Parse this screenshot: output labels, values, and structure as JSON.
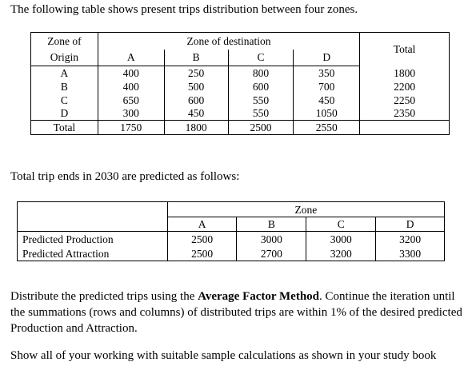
{
  "intro_text": "The following table shows present trips distribution between four zones.",
  "table1": {
    "origin_header_line1": "Zone of",
    "origin_header_line2": "Origin",
    "destination_header": "Zone of destination",
    "total_header": "Total",
    "columns": [
      "A",
      "B",
      "C",
      "D"
    ],
    "rows": [
      {
        "origin": "A",
        "values": [
          "400",
          "250",
          "800",
          "350"
        ],
        "total": "1800"
      },
      {
        "origin": "B",
        "values": [
          "400",
          "500",
          "600",
          "700"
        ],
        "total": "2200"
      },
      {
        "origin": "C",
        "values": [
          "650",
          "600",
          "550",
          "450"
        ],
        "total": "2250"
      },
      {
        "origin": "D",
        "values": [
          "300",
          "450",
          "550",
          "1050"
        ],
        "total": "2350"
      }
    ],
    "total_row_label": "Total",
    "column_totals": [
      "1750",
      "1800",
      "2500",
      "2550"
    ]
  },
  "mid_text": "Total trip ends in 2030 are predicted as follows:",
  "table2": {
    "zone_header": "Zone",
    "columns": [
      "A",
      "B",
      "C",
      "D"
    ],
    "rows": [
      {
        "label": "Predicted Production",
        "values": [
          "2500",
          "3000",
          "3000",
          "3200"
        ]
      },
      {
        "label": "Predicted Attraction",
        "values": [
          "2500",
          "2700",
          "3200",
          "3300"
        ]
      }
    ]
  },
  "paragraph": {
    "before_bold": "Distribute the predicted trips using the ",
    "bold": "Average Factor Method",
    "after_bold": ". Continue the iteration until the summations (rows and columns) of distributed trips are within 1% of the desired predicted Production and Attraction."
  },
  "note_text": "Show all of your working with suitable sample calculations as shown in your study book"
}
